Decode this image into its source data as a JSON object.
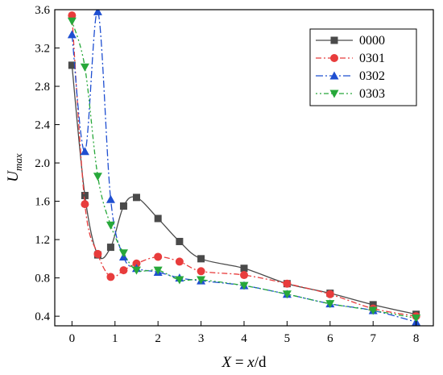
{
  "chart_data": {
    "type": "line",
    "xlabel": "X = x/d",
    "ylabel": "U_max",
    "xlim": [
      -0.4,
      8.4
    ],
    "ylim": [
      0.3,
      3.6
    ],
    "xticks": [
      "0",
      "1",
      "2",
      "3",
      "4",
      "5",
      "6",
      "7",
      "8"
    ],
    "yticks": [
      "0.4",
      "0.8",
      "1.2",
      "1.6",
      "2.0",
      "2.4",
      "2.8",
      "3.2",
      "3.6"
    ],
    "legend_position": "top-right",
    "grid": false,
    "series": [
      {
        "name": "0000",
        "color": "#4a4a4a",
        "marker": "square",
        "dash": "",
        "points": [
          [
            0,
            3.02
          ],
          [
            0.3,
            1.66
          ],
          [
            0.6,
            1.04
          ],
          [
            0.9,
            1.12
          ],
          [
            1.2,
            1.55
          ],
          [
            1.5,
            1.64
          ],
          [
            2,
            1.42
          ],
          [
            2.5,
            1.18
          ],
          [
            3,
            1.0
          ],
          [
            4,
            0.9
          ],
          [
            5,
            0.74
          ],
          [
            6,
            0.64
          ],
          [
            7,
            0.52
          ],
          [
            8,
            0.42
          ]
        ]
      },
      {
        "name": "0301",
        "color": "#e83c3c",
        "marker": "circle",
        "dash": "7 3 2 3",
        "points": [
          [
            0,
            3.54
          ],
          [
            0.3,
            1.57
          ],
          [
            0.6,
            1.05
          ],
          [
            0.9,
            0.81
          ],
          [
            1.2,
            0.88
          ],
          [
            1.5,
            0.95
          ],
          [
            2,
            1.02
          ],
          [
            2.5,
            0.97
          ],
          [
            3,
            0.87
          ],
          [
            4,
            0.83
          ],
          [
            5,
            0.74
          ],
          [
            6,
            0.63
          ],
          [
            7,
            0.48
          ],
          [
            8,
            0.4
          ]
        ]
      },
      {
        "name": "0302",
        "color": "#1f4fd1",
        "marker": "triangle-up",
        "dash": "9 3 2 3",
        "points": [
          [
            0,
            3.34
          ],
          [
            0.3,
            2.12
          ],
          [
            0.6,
            3.58
          ],
          [
            0.9,
            1.62
          ],
          [
            1.2,
            1.02
          ],
          [
            1.5,
            0.9
          ],
          [
            2,
            0.86
          ],
          [
            2.5,
            0.8
          ],
          [
            3,
            0.77
          ],
          [
            4,
            0.72
          ],
          [
            5,
            0.63
          ],
          [
            6,
            0.53
          ],
          [
            7,
            0.46
          ],
          [
            8,
            0.34
          ]
        ]
      },
      {
        "name": "0303",
        "color": "#27a83a",
        "marker": "triangle-down",
        "dash": "2 3 2 3 6 3",
        "points": [
          [
            0,
            3.48
          ],
          [
            0.3,
            3.0
          ],
          [
            0.6,
            1.86
          ],
          [
            0.9,
            1.35
          ],
          [
            1.2,
            1.06
          ],
          [
            1.5,
            0.88
          ],
          [
            2,
            0.88
          ],
          [
            2.5,
            0.78
          ],
          [
            3,
            0.78
          ],
          [
            4,
            0.72
          ],
          [
            5,
            0.63
          ],
          [
            6,
            0.53
          ],
          [
            7,
            0.46
          ],
          [
            8,
            0.38
          ]
        ]
      }
    ]
  }
}
